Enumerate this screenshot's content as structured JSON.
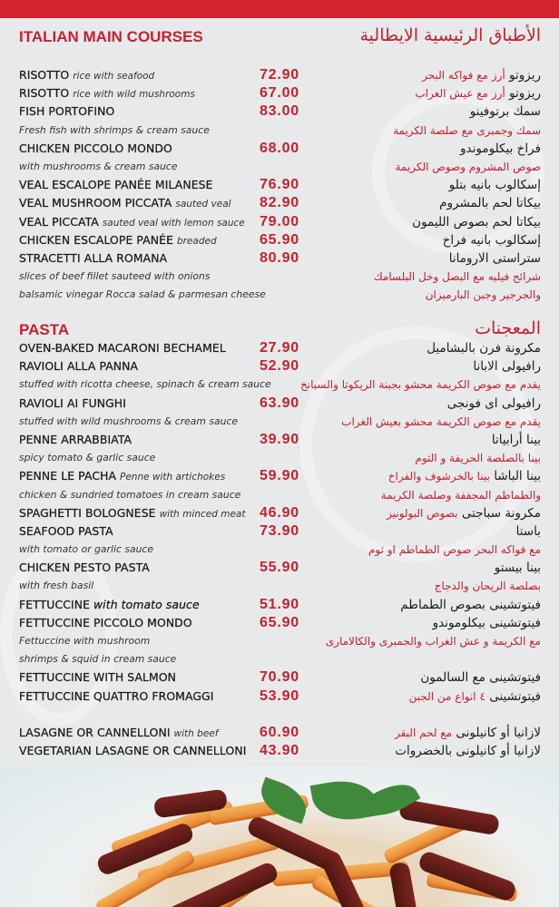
{
  "main": {
    "title": "ITALIAN MAIN COURSES",
    "title_ar": "الأطباق الرئيسية الايطالية",
    "rows": [
      {
        "name": "RISOTTO",
        "name_desc": "rice with seafood",
        "price": "72.90",
        "ar_name": "ريزوتو",
        "ar_desc": "أرز مع فواكه البحر"
      },
      {
        "name": "RISOTTO",
        "name_desc": "rice with wild mushrooms",
        "price": "67.00",
        "ar_name": "ريزوتو",
        "ar_desc": "أرز مع عيش الغراب"
      },
      {
        "name": "FISH PORTOFINO",
        "price": "83.00",
        "ar_name": "سمك برتوفينو"
      },
      {
        "desc": "Fresh fish with shrimps & cream sauce",
        "ar_desc": "سمك وجمبرى مع صلصة الكريمة"
      },
      {
        "name": "CHICKEN PICCOLO MONDO",
        "price": "68.00",
        "ar_name": "فراخ بيكلوموندو"
      },
      {
        "desc": "with mushrooms & cream sauce",
        "ar_desc": "صوص المشروم وصوص الكريمة"
      },
      {
        "name": "VEAL ESCALOPE PANÉE MILANESE",
        "price": "76.90",
        "ar_name": "إسكالوب بانيه بتلو"
      },
      {
        "name": "VEAL MUSHROOM PICCATA",
        "name_desc": "sauted veal",
        "price": "82.90",
        "ar_name": "بيكاتا لحم بالمشروم"
      },
      {
        "name": "VEAL PICCATA",
        "name_desc": "sauted veal with lemon sauce",
        "price": "79.00",
        "ar_name": "بيكاتا لحم بصوص الليمون"
      },
      {
        "name": "CHICKEN ESCALOPE PANÉE",
        "name_desc": "breaded",
        "price": "65.90",
        "ar_name": "إسكالوب بانيه فراخ"
      },
      {
        "name": "STRACETTI ALLA ROMANA",
        "price": "80.90",
        "ar_name": "ستراستى الارومانا"
      },
      {
        "desc": "slices of beef fillet sauteed with onions",
        "ar_desc": "شرائح فيليه مع البصل وخل البلسامك"
      },
      {
        "desc": "balsamic vinegar Rocca salad & parmesan cheese",
        "ar_desc": "والجرجير وجبن البارميزان"
      }
    ]
  },
  "pasta": {
    "title": "PASTA",
    "title_ar": "المعجنات",
    "rows": [
      {
        "name": "OVEN-BAKED MACARONI BECHAMEL",
        "price": "27.90",
        "ar_name": "مكرونة فرن بالبشاميل"
      },
      {
        "name": "RAVIOLI ALLA PANNA",
        "price": "52.90",
        "ar_name": "رافيولى الابانا"
      },
      {
        "desc": "stuffed with ricotta cheese, spinach & cream sauce",
        "ar_desc": "يقدم مع صوص الكريمة محشو بجبنة الريكوتا والسبانخ"
      },
      {
        "name": "RAVIOLI AI FUNGHI",
        "price": "63.90",
        "ar_name": "رافيولى اى فونجى"
      },
      {
        "desc": "stuffed with wild mushrooms & cream sauce",
        "ar_desc": "يقدم مع صوص الكريمة محشو بعيش الغراب"
      },
      {
        "name": "PENNE ARRABBIATA",
        "price": "39.90",
        "ar_name": "بينا أرابياتا"
      },
      {
        "desc": "spicy tomato & garlic sauce",
        "ar_desc": "بينا بالصلصة الحريفة و الثوم"
      },
      {
        "name": "PENNE LE PACHA",
        "name_desc": "Penne with artichokes",
        "price": "59.90",
        "ar_name": "بينا الباشا",
        "ar_desc": "بينا بالخرشوف والفراخ"
      },
      {
        "desc": "chicken & sundried tomatoes in cream sauce",
        "ar_desc": "والطماطم المجففة وصلصة الكريمة"
      },
      {
        "name": "SPAGHETTI BOLOGNESE",
        "name_desc": "with minced meat",
        "price": "46.90",
        "ar_name": "مكرونة سباجتى",
        "ar_desc": "بصوص البولونيز"
      },
      {
        "name": "SEAFOOD PASTA",
        "price": "73.90",
        "ar_name": "باستا"
      },
      {
        "desc": "with tomato or garlic sauce",
        "ar_desc": "مع فواكه البحر  صوص الطماطم او ثوم"
      },
      {
        "name": "CHICKEN PESTO PASTA",
        "price": "55.90",
        "ar_name": "بينا بيستو"
      },
      {
        "desc": "with fresh basil",
        "ar_desc": "بصلصة الريحان والدجاج"
      },
      {
        "name": "FETTUCCINE",
        "name_desc": "with tomato sauce",
        "price": "51.90",
        "ar_name": "فيتوتشينى بصوص الطماطم",
        "bold_desc": true
      },
      {
        "name": "FETTUCCINE PICCOLO MONDO",
        "price": "65.90",
        "ar_name": "فيتوتشينى بيكلوموندو"
      },
      {
        "desc": "Fettuccine with mushroom",
        "ar_desc": "مع الكريمة و عش الغراب والجمبرى والكالامارى"
      },
      {
        "desc": " shrimps & squid in cream sauce"
      },
      {
        "name": "FETTUCCINE WITH SALMON",
        "price": "70.90",
        "ar_name": "فيتوتشينى مع السالمون"
      },
      {
        "name": "FETTUCCINE QUATTRO FROMAGGI",
        "price": "53.90",
        "ar_name": "فيتوتشينى",
        "ar_desc": "٤ انواع من الجبن"
      }
    ],
    "baked_rows": [
      {
        "name": "LASAGNE OR CANNELLONI",
        "name_desc": "with beef",
        "price": "60.90",
        "ar_name": "لازانيا أو كانيلونى",
        "ar_desc": "مع لحم البقر"
      },
      {
        "name": "VEGETARIAN LASAGNE OR CANNELLONI",
        "price": "43.90",
        "ar_name": "لازانيا أو كانيلونى بالخضروات"
      }
    ]
  },
  "colors": {
    "accent": "#c6202d",
    "background": "#e8e9eb",
    "text": "#1a1a1a"
  },
  "photo": {
    "subject": "penne-with-sundried-tomatoes-image"
  }
}
